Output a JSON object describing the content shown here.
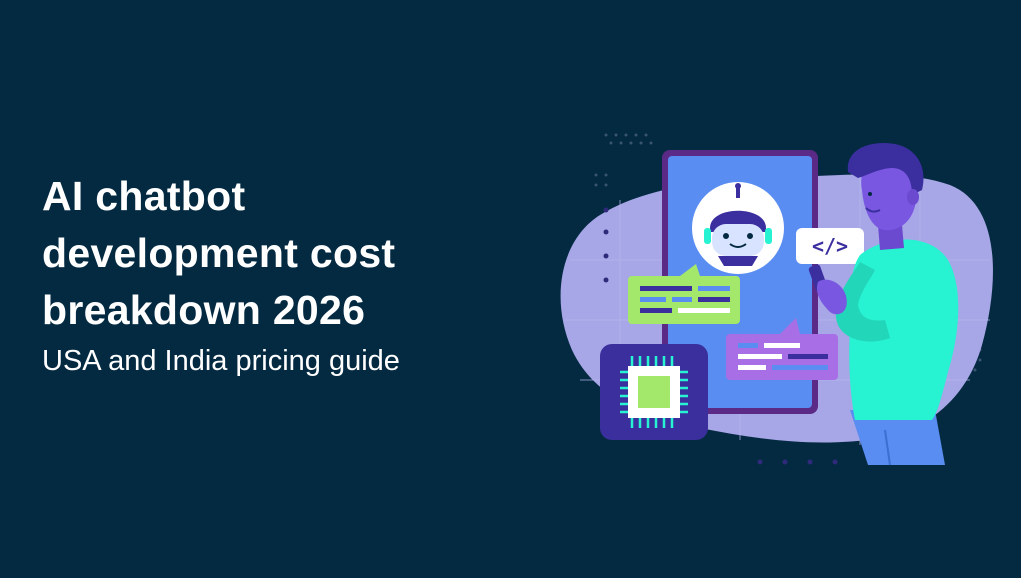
{
  "hero": {
    "title_lines": [
      "AI chatbot",
      "development cost",
      "breakdown 2026"
    ],
    "subtitle": "USA and India pricing guide"
  },
  "illustration": {
    "code_tag": "</>",
    "icons": [
      "phone-icon",
      "robot-icon",
      "chip-icon",
      "person-icon",
      "chat-bubble-icon",
      "code-icon"
    ],
    "colors": {
      "background": "#042a42",
      "blob": "#a7a6e6",
      "phone_screen": "#5a8df2",
      "phone_frame": "#5b2a86",
      "green_bubble": "#a4e86b",
      "purple_bubble": "#a86ee6",
      "chip_bg": "#3a2f9c",
      "shirt": "#27f2d2",
      "hair": "#3b2fa0"
    }
  }
}
